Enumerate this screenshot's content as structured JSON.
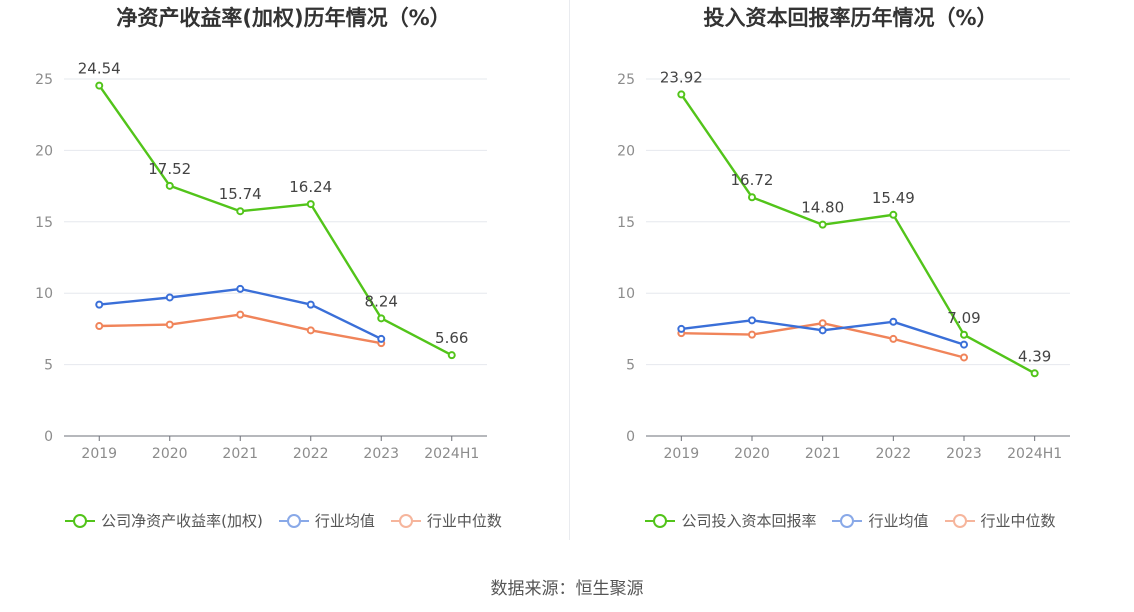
{
  "source_text": "数据来源：恒生聚源",
  "chart_data": [
    {
      "type": "line",
      "title": "净资产收益率(加权)历年情况（%）",
      "categories": [
        "2019",
        "2020",
        "2021",
        "2022",
        "2023",
        "2024H1"
      ],
      "ylim": [
        0,
        25
      ],
      "yticks": [
        0,
        5,
        10,
        15,
        20,
        25
      ],
      "grid": true,
      "legend_position": "bottom",
      "series": [
        {
          "name": "公司净资产收益率(加权)",
          "color": "#52c41a",
          "values": [
            24.54,
            17.52,
            15.74,
            16.24,
            8.24,
            5.66
          ],
          "labels": [
            "24.54",
            "17.52",
            "15.74",
            "16.24",
            "8.24",
            "5.66"
          ]
        },
        {
          "name": "行业均值",
          "color": "#3a6fd8",
          "values": [
            9.2,
            9.7,
            10.3,
            9.2,
            6.8,
            null
          ]
        },
        {
          "name": "行业中位数",
          "color": "#f0845a",
          "values": [
            7.7,
            7.8,
            8.5,
            7.4,
            6.5,
            null
          ]
        }
      ]
    },
    {
      "type": "line",
      "title": "投入资本回报率历年情况（%）",
      "categories": [
        "2019",
        "2020",
        "2021",
        "2022",
        "2023",
        "2024H1"
      ],
      "ylim": [
        0,
        25
      ],
      "yticks": [
        0,
        5,
        10,
        15,
        20,
        25
      ],
      "grid": true,
      "legend_position": "bottom",
      "series": [
        {
          "name": "公司投入资本回报率",
          "color": "#52c41a",
          "values": [
            23.92,
            16.72,
            14.8,
            15.49,
            7.09,
            4.39
          ],
          "labels": [
            "23.92",
            "16.72",
            "14.80",
            "15.49",
            "7.09",
            "4.39"
          ]
        },
        {
          "name": "行业均值",
          "color": "#3a6fd8",
          "values": [
            7.5,
            8.1,
            7.4,
            8.0,
            6.4,
            null
          ]
        },
        {
          "name": "行业中位数",
          "color": "#f0845a",
          "values": [
            7.2,
            7.1,
            7.9,
            6.8,
            5.5,
            null
          ]
        }
      ]
    }
  ]
}
